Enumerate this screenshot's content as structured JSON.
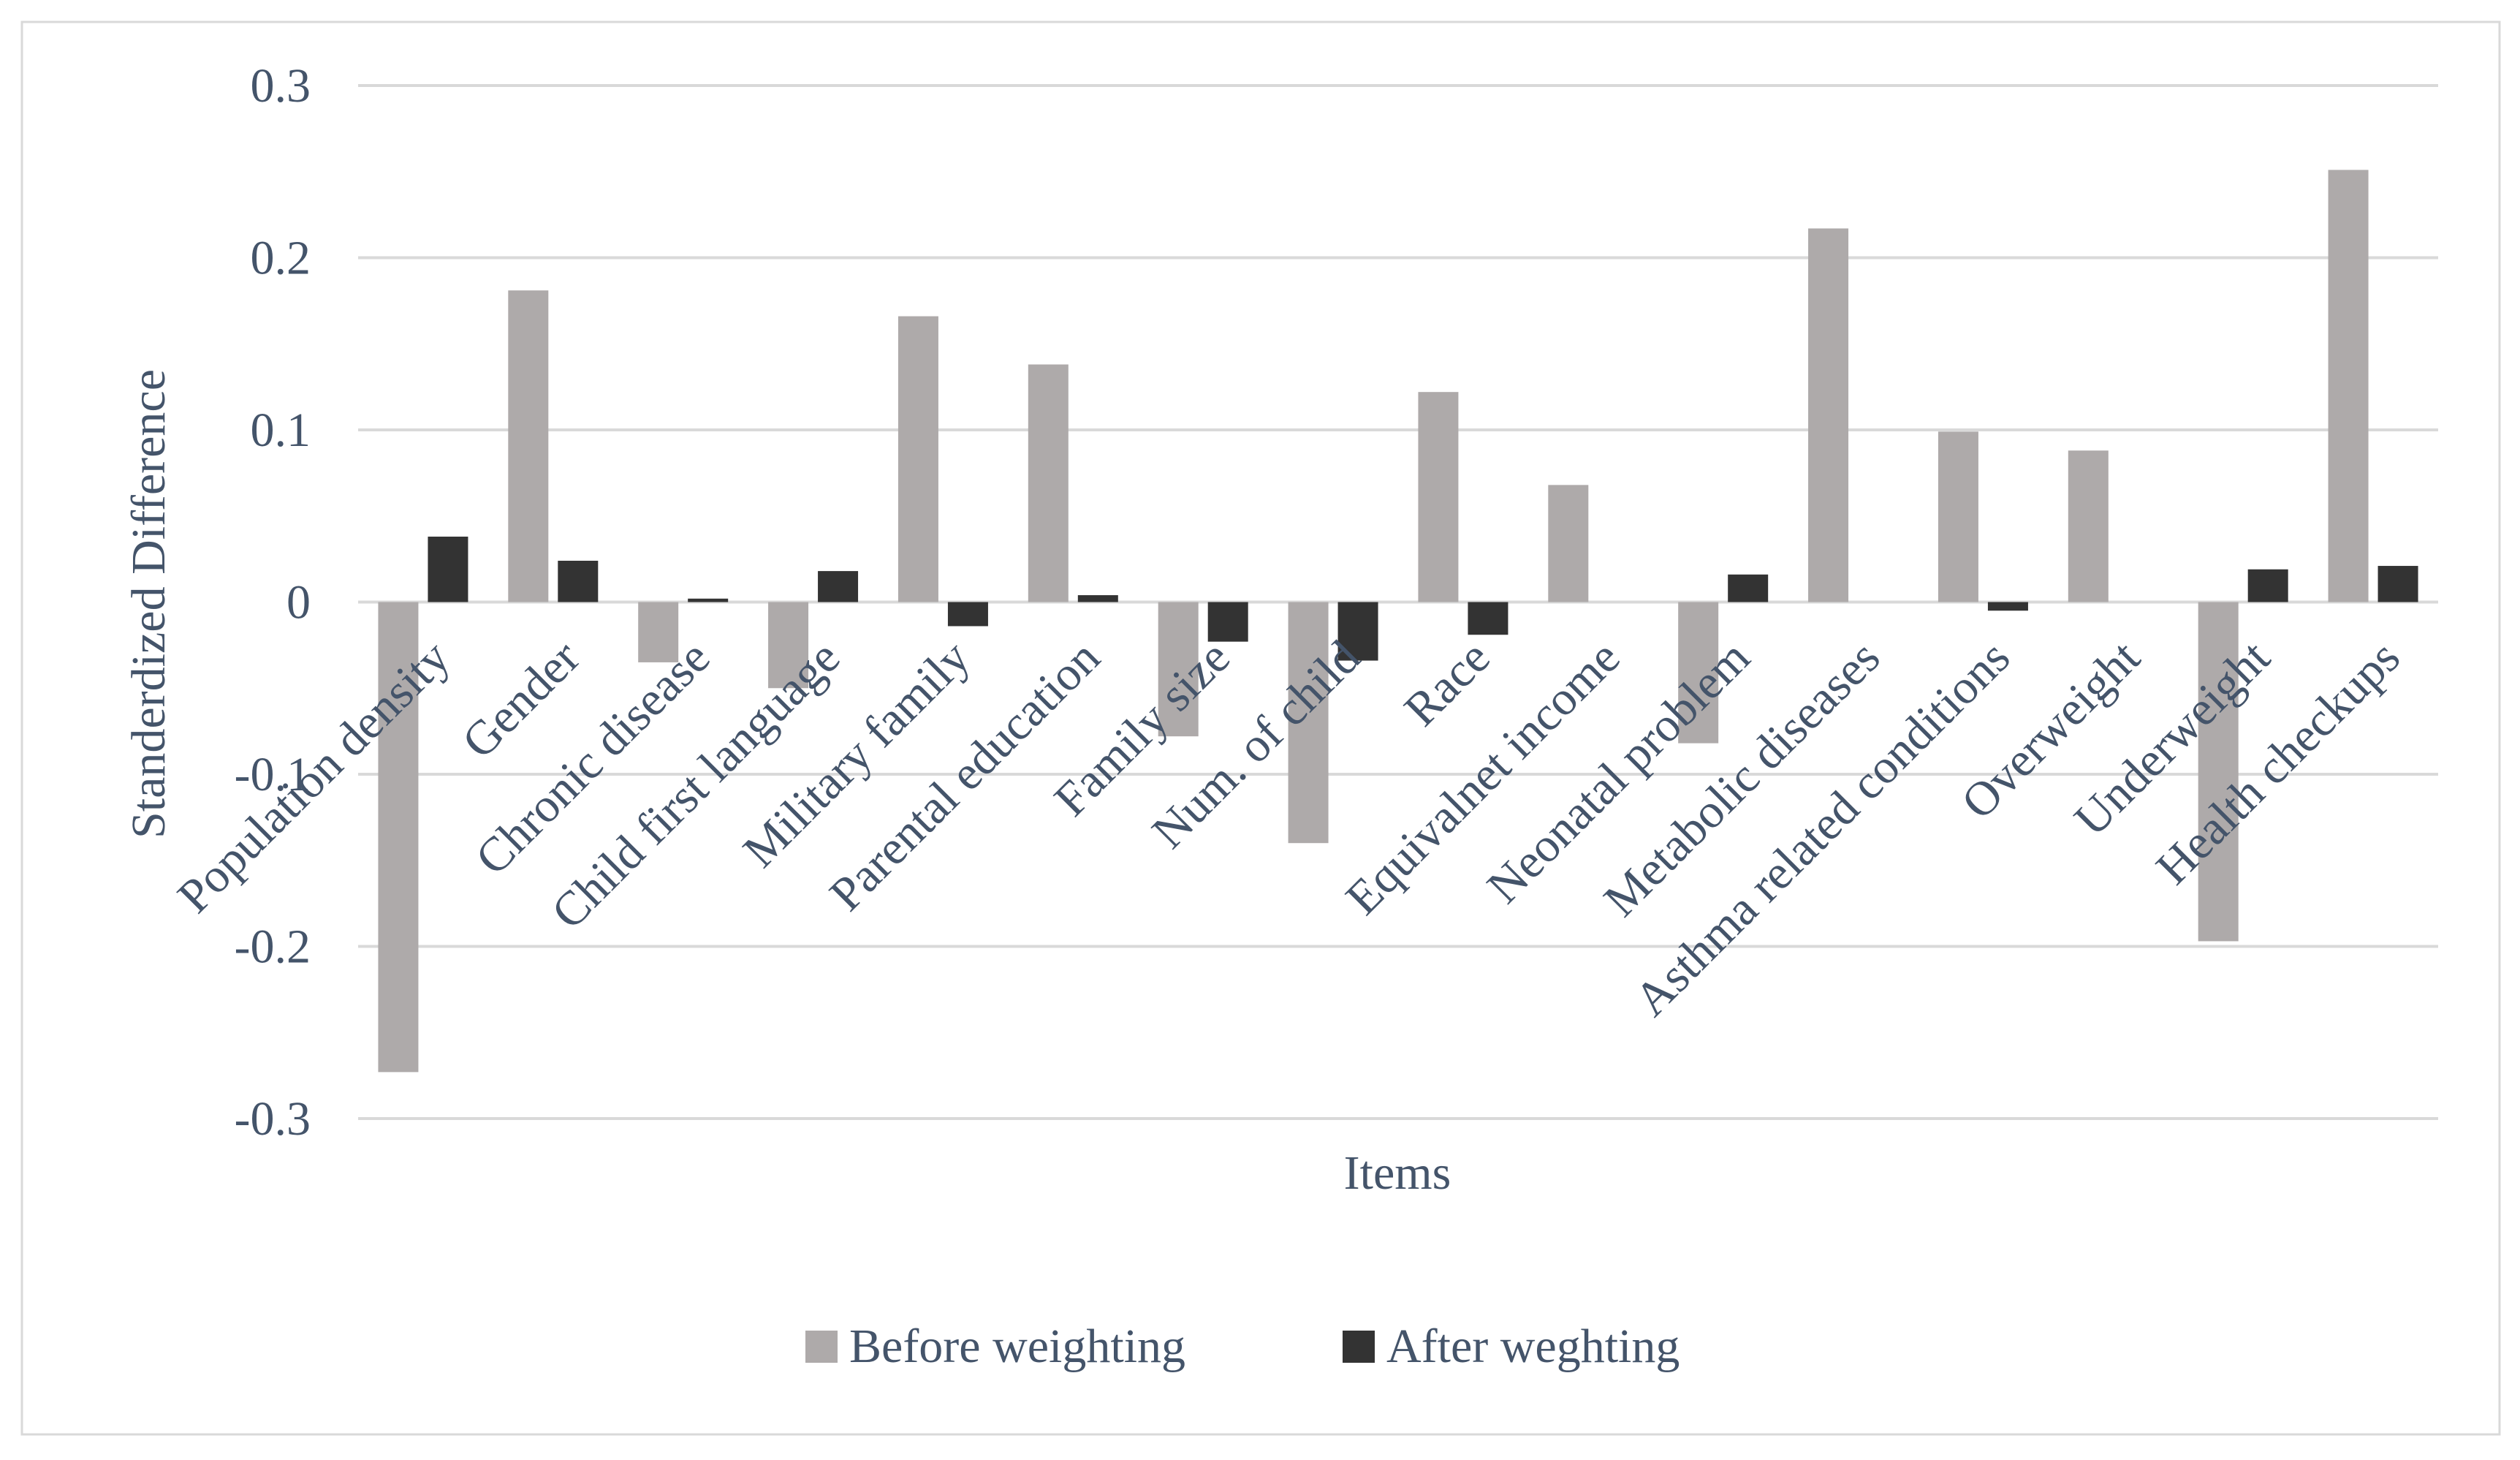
{
  "chart_data": {
    "type": "bar",
    "title": "",
    "xlabel": "Items",
    "ylabel": "Standerdized Difference",
    "ylim": [
      -0.3,
      0.3
    ],
    "yticks": [
      0.3,
      0.2,
      0.1,
      0,
      -0.1,
      -0.2,
      -0.3
    ],
    "ytick_labels": [
      "0.3",
      "0.2",
      "0.1",
      "0",
      "-0.1",
      "-0.2",
      "-0.3"
    ],
    "grid": true,
    "legend_position": "bottom",
    "categories": [
      "Population density",
      "Gender",
      "Chronic disease",
      "Child first language",
      "Military family",
      "Parental education",
      "Family size",
      "Num. of child",
      "Race",
      "Equivalnet income",
      "Neonatal problem",
      "Metabolic diseases",
      "Asthma related conditions",
      "Overweight",
      "Underweight",
      "Health checkups"
    ],
    "series": [
      {
        "name": "Before weighting",
        "color": "#aeaaaa",
        "values": [
          -0.273,
          0.181,
          -0.035,
          -0.05,
          0.166,
          0.138,
          -0.078,
          -0.14,
          0.122,
          0.068,
          -0.082,
          0.217,
          0.099,
          0.088,
          -0.197,
          0.251
        ]
      },
      {
        "name": "After weghting",
        "color": "#333333",
        "values": [
          0.038,
          0.024,
          0.002,
          0.018,
          -0.014,
          0.004,
          -0.023,
          -0.034,
          -0.019,
          0.0,
          0.016,
          0.0,
          -0.005,
          0.0,
          0.019,
          0.021
        ]
      }
    ]
  }
}
